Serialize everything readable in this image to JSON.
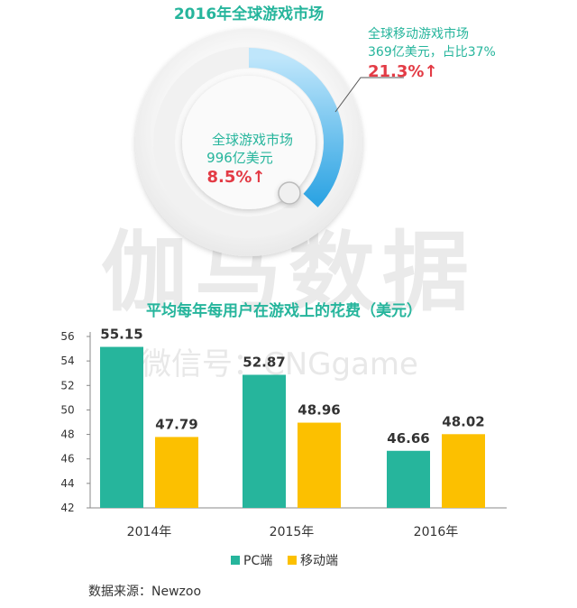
{
  "colors": {
    "teal": "#26b59c",
    "gold": "#fcc000",
    "red": "#e33b45",
    "blue": "#3ab0e8",
    "watermark": "#e6e6e6"
  },
  "donut": {
    "title": "2016年全球游戏市场",
    "inner_line1": "全球游戏市场",
    "inner_line2": "996亿美元",
    "inner_growth": "8.5%↑",
    "callout_line1": "全球移动游戏市场",
    "callout_line2": "369亿美元，占比37%",
    "callout_growth": "21.3%↑"
  },
  "watermark": {
    "large": "伽马数据",
    "small": "微信号：CNGgame"
  },
  "source": "数据来源：Newzoo",
  "chart_data": [
    {
      "type": "pie",
      "title": "2016年全球游戏市场",
      "slices": [
        {
          "name": "全球移动游戏市场",
          "value": 37
        }
      ]
    },
    {
      "type": "bar",
      "title": "平均每年每用户在游戏上的花费（美元）",
      "categories": [
        "2014年",
        "2015年",
        "2016年"
      ],
      "series": [
        {
          "name": "PC端",
          "values": [
            55.15,
            52.87,
            46.66
          ],
          "labels": [
            "55.15",
            "52.87",
            "46.66"
          ]
        },
        {
          "name": "移动端",
          "values": [
            47.79,
            48.96,
            48.02
          ],
          "labels": [
            "47.79",
            "48.96",
            "48.02"
          ]
        }
      ],
      "ylim": [
        42,
        56
      ],
      "yticks": [
        "42",
        "44",
        "46",
        "48",
        "50",
        "52",
        "54",
        "56"
      ],
      "legend": "bottom-center",
      "grid": false
    }
  ]
}
